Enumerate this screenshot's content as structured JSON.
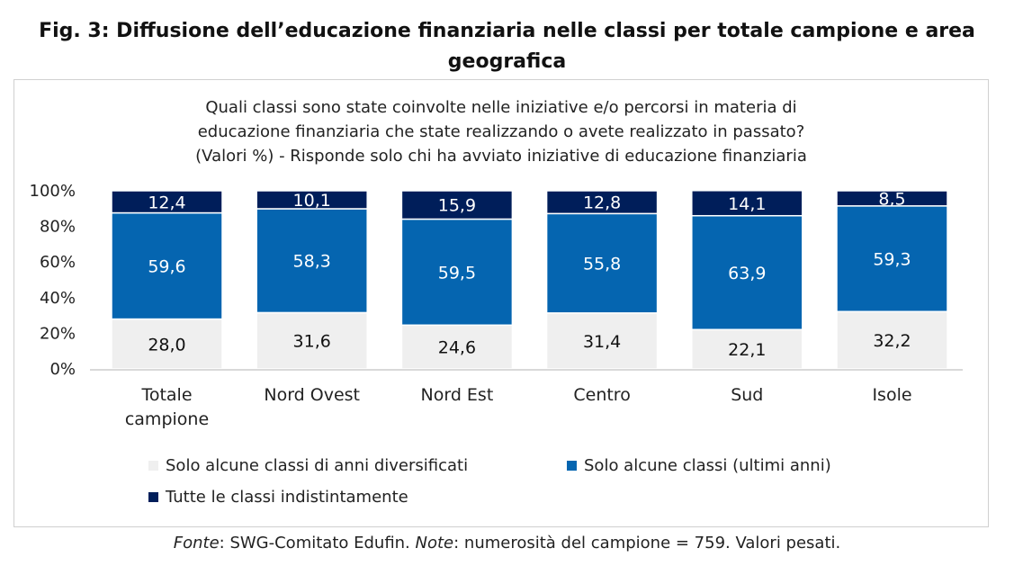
{
  "title": "Fig. 3: Diffusione dell’educazione finanziaria nelle classi per totale campione e area geografica",
  "source": {
    "fonte_label": "Fonte",
    "fonte_text": ": SWG-Comitato Edufin. ",
    "note_label": "Note",
    "note_text": ": numerosità del campione = 759. Valori pesati."
  },
  "chart_data": {
    "type": "bar",
    "stacked": true,
    "title": "Quali classi sono state coinvolte nelle iniziative e/o percorsi in materia di educazione finanziaria che state realizzando o avete realizzato in passato? (Valori %) - Risponde solo chi ha avviato iniziative di educazione finanziaria",
    "title_lines": [
      "Quali classi sono state coinvolte nelle iniziative e/o percorsi in materia di",
      "educazione finanziaria che state realizzando o avete realizzato in passato?",
      "(Valori %) - Risponde solo chi ha avviato iniziative di educazione finanziaria"
    ],
    "categories": [
      "Totale campione",
      "Nord Ovest",
      "Nord Est",
      "Centro",
      "Sud",
      "Isole"
    ],
    "category_lines": [
      [
        "Totale",
        "campione"
      ],
      [
        "Nord Ovest"
      ],
      [
        "Nord Est"
      ],
      [
        "Centro"
      ],
      [
        "Sud"
      ],
      [
        "Isole"
      ]
    ],
    "ylim": [
      0,
      100
    ],
    "yticks": [
      "0%",
      "20%",
      "40%",
      "60%",
      "80%",
      "100%"
    ],
    "grid": false,
    "legend_position": "bottom",
    "series": [
      {
        "name": "Solo alcune classi di anni diversificati",
        "color": "#efefef",
        "label_color": "#111111",
        "values": [
          28.0,
          31.6,
          24.6,
          31.4,
          22.1,
          32.2
        ],
        "labels": [
          "28,0",
          "31,6",
          "24,6",
          "31,4",
          "22,1",
          "32,2"
        ]
      },
      {
        "name": "Solo alcune classi (ultimi anni)",
        "color": "#0565b0",
        "label_color": "#ffffff",
        "values": [
          59.6,
          58.3,
          59.5,
          55.8,
          63.9,
          59.3
        ],
        "labels": [
          "59,6",
          "58,3",
          "59,5",
          "55,8",
          "63,9",
          "59,3"
        ]
      },
      {
        "name": "Tutte le classi indistintamente",
        "color": "#001e5a",
        "label_color": "#ffffff",
        "values": [
          12.4,
          10.1,
          15.9,
          12.8,
          14.1,
          8.5
        ],
        "labels": [
          "12,4",
          "10,1",
          "15,9",
          "12,8",
          "14,1",
          "8,5"
        ]
      }
    ]
  }
}
